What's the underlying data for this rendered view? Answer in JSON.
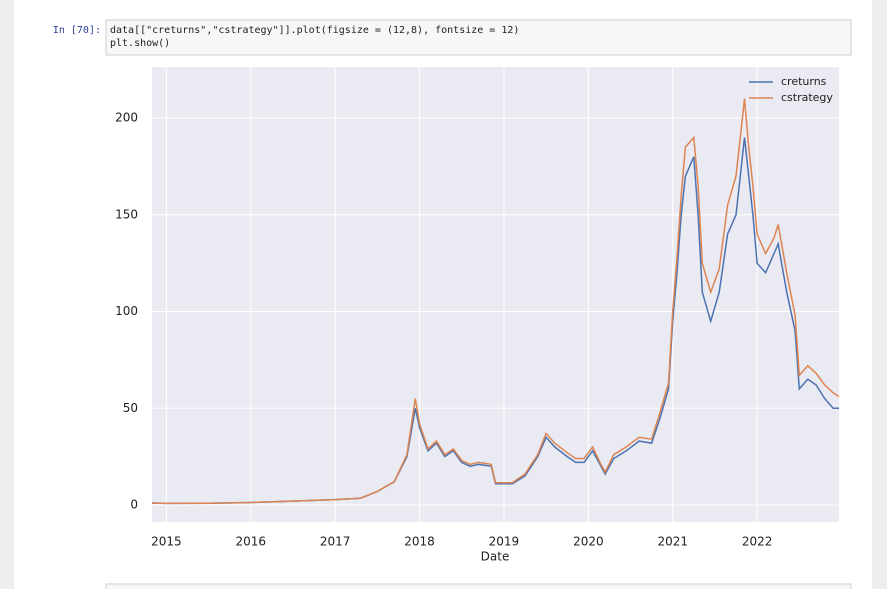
{
  "cell": {
    "prompt": "In [70]:",
    "code": [
      "data[[\"creturns\",\"cstrategy\"]].plot(figsize = (12,8), fontsize = 12)",
      "plt.show()"
    ]
  },
  "chart_data": {
    "type": "line",
    "xlabel": "Date",
    "x": [
      2014.83,
      2015.0,
      2015.5,
      2016.0,
      2016.5,
      2017.0,
      2017.3,
      2017.5,
      2017.7,
      2017.85,
      2017.95,
      2018.0,
      2018.1,
      2018.2,
      2018.3,
      2018.4,
      2018.5,
      2018.6,
      2018.7,
      2018.85,
      2018.9,
      2019.0,
      2019.1,
      2019.25,
      2019.4,
      2019.5,
      2019.6,
      2019.75,
      2019.85,
      2019.95,
      2020.05,
      2020.15,
      2020.2,
      2020.3,
      2020.45,
      2020.6,
      2020.75,
      2020.85,
      2020.95,
      2021.0,
      2021.05,
      2021.1,
      2021.15,
      2021.25,
      2021.3,
      2021.35,
      2021.45,
      2021.55,
      2021.65,
      2021.75,
      2021.8,
      2021.85,
      2021.9,
      2021.95,
      2022.0,
      2022.1,
      2022.2,
      2022.25,
      2022.35,
      2022.45,
      2022.5,
      2022.6,
      2022.7,
      2022.8,
      2022.9,
      2022.97
    ],
    "series": [
      {
        "name": "creturns",
        "color": "#4c72b0",
        "values": [
          1,
          0.8,
          0.9,
          1.3,
          2,
          2.8,
          3.5,
          7,
          12,
          25,
          50,
          40,
          28,
          32,
          25,
          28,
          22,
          20,
          21,
          20,
          11,
          11,
          11,
          15,
          25,
          35,
          30,
          25,
          22,
          22,
          28,
          20,
          16,
          24,
          28,
          33,
          32,
          45,
          60,
          95,
          120,
          150,
          170,
          180,
          150,
          110,
          95,
          110,
          140,
          150,
          170,
          190,
          170,
          150,
          125,
          120,
          130,
          135,
          110,
          90,
          60,
          65,
          62,
          55,
          50,
          50
        ]
      },
      {
        "name": "cstrategy",
        "color": "#dd8452",
        "values": [
          1,
          0.8,
          0.9,
          1.3,
          2,
          2.8,
          3.5,
          7,
          12,
          26,
          55,
          42,
          29,
          33,
          26,
          29,
          23,
          21,
          22,
          21,
          11.5,
          11.5,
          11.5,
          16,
          26,
          37,
          32,
          27,
          24,
          24,
          30,
          21,
          17,
          26,
          30,
          35,
          34,
          48,
          63,
          100,
          128,
          160,
          185,
          190,
          165,
          125,
          110,
          122,
          155,
          170,
          190,
          210,
          185,
          165,
          140,
          130,
          138,
          145,
          120,
          98,
          67,
          72,
          68,
          62,
          58,
          56
        ]
      }
    ],
    "xlim": [
      2014.83,
      2022.97
    ],
    "xticks": [
      2015,
      2016,
      2017,
      2018,
      2019,
      2020,
      2021,
      2022
    ],
    "ylim": [
      -8.8,
      226.4
    ],
    "yticks": [
      0,
      50,
      100,
      150,
      200
    ],
    "grid": true,
    "legend": "upper-right"
  }
}
